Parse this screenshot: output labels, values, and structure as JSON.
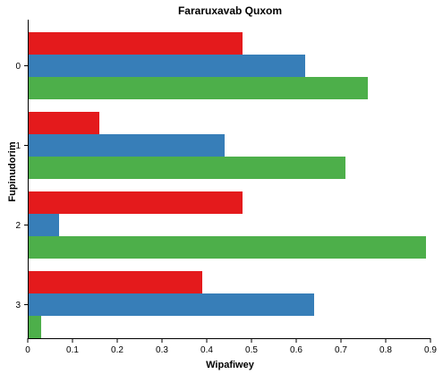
{
  "chart_data": {
    "type": "bar",
    "orientation": "horizontal",
    "title": "Fararuxavab Quxom",
    "xlabel": "Wipafiwey",
    "ylabel": "Fupinudorim",
    "categories": [
      "0",
      "1",
      "2",
      "3"
    ],
    "series": [
      {
        "color": "#e41a1c",
        "values": [
          0.48,
          0.16,
          0.48,
          0.39
        ]
      },
      {
        "color": "#377eb8",
        "values": [
          0.62,
          0.44,
          0.07,
          0.64
        ]
      },
      {
        "color": "#4daf4a",
        "values": [
          0.76,
          0.71,
          0.89,
          0.03
        ]
      }
    ],
    "xlim": [
      0,
      0.9
    ],
    "xticks": [
      "0",
      "0.1",
      "0.2",
      "0.3",
      "0.4",
      "0.5",
      "0.6",
      "0.7",
      "0.8",
      "0.9"
    ],
    "grid": false,
    "legend": "none"
  }
}
